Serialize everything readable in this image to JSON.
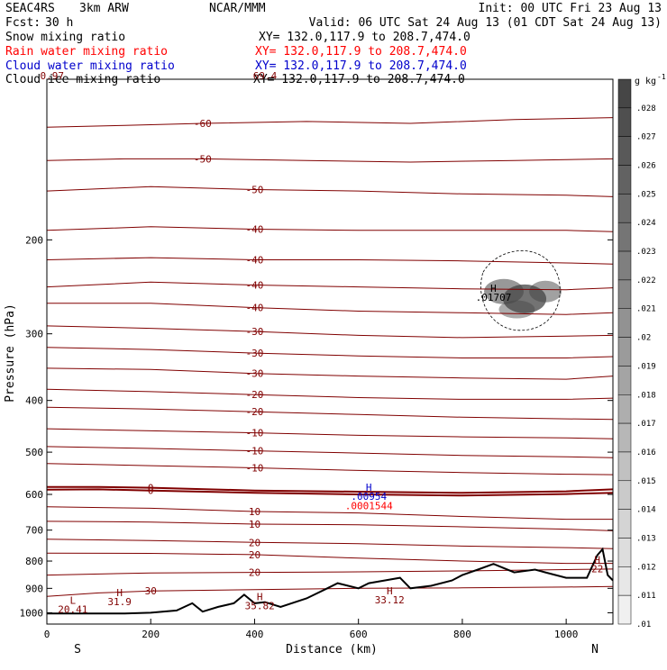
{
  "header": {
    "model": "SEAC4RS",
    "resolution": "3km ARW",
    "center": "NCAR/MMM",
    "init": "Init: 00 UTC Fri 23 Aug 13",
    "fcst_label": "Fcst:",
    "fcst_value": "30 h",
    "valid": "Valid: 06 UTC Sat 24 Aug 13 (01 CDT Sat 24 Aug 13)"
  },
  "fields": [
    {
      "name": "Snow mixing ratio",
      "xy": "XY= 132.0,117.9 to 208.7,474.0",
      "color": "#000000"
    },
    {
      "name": "Rain water mixing ratio",
      "xy": "XY= 132.0,117.9 to 208.7,474.0",
      "color": "#ff0000"
    },
    {
      "name": "Cloud water mixing ratio",
      "xy": "XY= 132.0,117.9 to 208.7,474.0",
      "color": "#0000cc"
    },
    {
      "name": "Cloud ice mixing ratio",
      "xy": "XY= 132.0,117.9 to 208.7,474.0",
      "color": "#000000"
    }
  ],
  "colors": {
    "contour": "#800000",
    "zero_contour": "#800000",
    "terrain": "#000000",
    "cloud_water": "#0000cc",
    "rain_water": "#ff0000",
    "snow_shading": "#444444"
  },
  "chart_data": {
    "type": "cross-section",
    "xlabel": "Distance (km)",
    "ylabel": "Pressure (hPa)",
    "xlim": [
      0,
      1090
    ],
    "ylim": [
      1050,
      100
    ],
    "y_scale": "log",
    "x_ticks": [
      0,
      200,
      400,
      600,
      800,
      1000
    ],
    "y_ticks": [
      200,
      300,
      400,
      500,
      600,
      700,
      800,
      900,
      1000
    ],
    "endpoint_labels": {
      "left": "S",
      "right": "N"
    },
    "colorbar": {
      "unit": "g kg",
      "unit_superscript": "-1",
      "levels": [
        ".028",
        ".027",
        ".026",
        ".025",
        ".024",
        ".023",
        ".022",
        ".021",
        ".02",
        ".019",
        ".018",
        ".017",
        ".016",
        ".015",
        ".014",
        ".013",
        ".012",
        ".011",
        ".01"
      ]
    },
    "isotherms": [
      {
        "label": "-60",
        "points": [
          [
            0,
            123
          ],
          [
            150,
            122
          ],
          [
            300,
            121
          ],
          [
            500,
            120
          ],
          [
            700,
            121
          ],
          [
            900,
            119
          ],
          [
            1090,
            118
          ]
        ]
      },
      {
        "label": "-50",
        "points": [
          [
            0,
            142
          ],
          [
            150,
            141
          ],
          [
            300,
            141
          ],
          [
            500,
            142
          ],
          [
            700,
            143
          ],
          [
            900,
            142
          ],
          [
            1090,
            141
          ]
        ]
      },
      {
        "label": "-50",
        "points": [
          [
            0,
            162
          ],
          [
            200,
            159
          ],
          [
            400,
            161
          ],
          [
            600,
            162
          ],
          [
            800,
            164
          ],
          [
            1000,
            165
          ],
          [
            1090,
            166
          ]
        ]
      },
      {
        "label": "-40",
        "points": [
          [
            0,
            192
          ],
          [
            200,
            189
          ],
          [
            400,
            191
          ],
          [
            600,
            192
          ],
          [
            800,
            192
          ],
          [
            1000,
            192
          ],
          [
            1090,
            193
          ]
        ]
      },
      {
        "label": "-40",
        "points": [
          [
            0,
            218
          ],
          [
            200,
            216
          ],
          [
            400,
            218
          ],
          [
            600,
            218
          ],
          [
            800,
            219
          ],
          [
            1000,
            221
          ],
          [
            1090,
            222
          ]
        ]
      },
      {
        "label": "-40",
        "points": [
          [
            0,
            245
          ],
          [
            200,
            240
          ],
          [
            400,
            243
          ],
          [
            600,
            245
          ],
          [
            800,
            247
          ],
          [
            1000,
            248
          ],
          [
            1090,
            246
          ]
        ]
      },
      {
        "label": "-40",
        "points": [
          [
            0,
            263
          ],
          [
            200,
            263
          ],
          [
            400,
            268
          ],
          [
            600,
            272
          ],
          [
            800,
            274
          ],
          [
            1000,
            276
          ],
          [
            1090,
            274
          ]
        ]
      },
      {
        "label": "-30",
        "points": [
          [
            0,
            290
          ],
          [
            200,
            293
          ],
          [
            400,
            297
          ],
          [
            600,
            302
          ],
          [
            800,
            305
          ],
          [
            1000,
            303
          ],
          [
            1090,
            302
          ]
        ]
      },
      {
        "label": "-30",
        "points": [
          [
            0,
            318
          ],
          [
            200,
            321
          ],
          [
            400,
            326
          ],
          [
            600,
            330
          ],
          [
            800,
            333
          ],
          [
            1000,
            333
          ],
          [
            1090,
            331
          ]
        ]
      },
      {
        "label": "-30",
        "points": [
          [
            0,
            348
          ],
          [
            200,
            350
          ],
          [
            400,
            356
          ],
          [
            600,
            360
          ],
          [
            800,
            363
          ],
          [
            1000,
            365
          ],
          [
            1090,
            360
          ]
        ]
      },
      {
        "label": "-20",
        "points": [
          [
            0,
            381
          ],
          [
            200,
            385
          ],
          [
            400,
            390
          ],
          [
            600,
            395
          ],
          [
            800,
            398
          ],
          [
            1000,
            398
          ],
          [
            1090,
            396
          ]
        ]
      },
      {
        "label": "-20",
        "points": [
          [
            0,
            412
          ],
          [
            200,
            415
          ],
          [
            400,
            420
          ],
          [
            600,
            425
          ],
          [
            800,
            430
          ],
          [
            1000,
            433
          ],
          [
            1090,
            434
          ]
        ]
      },
      {
        "label": "-10",
        "points": [
          [
            0,
            452
          ],
          [
            200,
            456
          ],
          [
            400,
            460
          ],
          [
            600,
            465
          ],
          [
            800,
            468
          ],
          [
            1000,
            470
          ],
          [
            1090,
            472
          ]
        ]
      },
      {
        "label": "-10",
        "points": [
          [
            0,
            488
          ],
          [
            200,
            492
          ],
          [
            400,
            497
          ],
          [
            600,
            502
          ],
          [
            800,
            507
          ],
          [
            1000,
            510
          ],
          [
            1090,
            512
          ]
        ]
      },
      {
        "label": "-10",
        "points": [
          [
            0,
            525
          ],
          [
            200,
            530
          ],
          [
            400,
            535
          ],
          [
            600,
            541
          ],
          [
            800,
            546
          ],
          [
            1000,
            550
          ],
          [
            1090,
            551
          ]
        ]
      },
      {
        "label": "0",
        "points": [
          [
            0,
            581
          ],
          [
            100,
            581
          ],
          [
            200,
            583
          ],
          [
            400,
            590
          ],
          [
            600,
            593
          ],
          [
            800,
            596
          ],
          [
            1000,
            592
          ],
          [
            1090,
            587
          ]
        ]
      },
      {
        "label": "0",
        "points": [
          [
            0,
            588
          ],
          [
            100,
            587
          ],
          [
            200,
            590
          ],
          [
            400,
            596
          ],
          [
            600,
            600
          ],
          [
            800,
            603
          ],
          [
            1000,
            599
          ],
          [
            1090,
            596
          ]
        ]
      },
      {
        "label": "10",
        "points": [
          [
            0,
            633
          ],
          [
            200,
            637
          ],
          [
            400,
            646
          ],
          [
            600,
            650
          ],
          [
            800,
            660
          ],
          [
            1000,
            668
          ],
          [
            1090,
            668
          ]
        ]
      },
      {
        "label": "10",
        "points": [
          [
            0,
            674
          ],
          [
            200,
            676
          ],
          [
            400,
            682
          ],
          [
            600,
            684
          ],
          [
            800,
            690
          ],
          [
            1000,
            697
          ],
          [
            1090,
            702
          ]
        ]
      },
      {
        "label": "20",
        "points": [
          [
            0,
            728
          ],
          [
            200,
            732
          ],
          [
            400,
            738
          ],
          [
            600,
            742
          ],
          [
            800,
            750
          ],
          [
            1000,
            755
          ],
          [
            1090,
            758
          ]
        ]
      },
      {
        "label": "20",
        "points": [
          [
            0,
            773
          ],
          [
            200,
            774
          ],
          [
            400,
            778
          ],
          [
            600,
            790
          ],
          [
            800,
            800
          ],
          [
            1000,
            808
          ],
          [
            1090,
            808
          ]
        ]
      },
      {
        "label": "20",
        "points": [
          [
            0,
            850
          ],
          [
            200,
            842
          ],
          [
            400,
            840
          ],
          [
            600,
            838
          ],
          [
            800,
            835
          ],
          [
            1000,
            830
          ],
          [
            1090,
            828
          ]
        ]
      },
      {
        "label": "30",
        "points": [
          [
            0,
            932
          ],
          [
            100,
            918
          ],
          [
            200,
            910
          ],
          [
            400,
            905
          ],
          [
            600,
            900
          ],
          [
            800,
            898
          ],
          [
            1000,
            895
          ],
          [
            1090,
            893
          ]
        ]
      }
    ],
    "terrain": [
      [
        0,
        1003
      ],
      [
        150,
        1003
      ],
      [
        200,
        1000
      ],
      [
        250,
        990
      ],
      [
        280,
        960
      ],
      [
        300,
        995
      ],
      [
        330,
        975
      ],
      [
        360,
        960
      ],
      [
        380,
        925
      ],
      [
        400,
        960
      ],
      [
        420,
        955
      ],
      [
        450,
        975
      ],
      [
        500,
        940
      ],
      [
        540,
        900
      ],
      [
        560,
        880
      ],
      [
        600,
        900
      ],
      [
        620,
        880
      ],
      [
        650,
        870
      ],
      [
        680,
        860
      ],
      [
        700,
        900
      ],
      [
        740,
        890
      ],
      [
        780,
        870
      ],
      [
        800,
        850
      ],
      [
        830,
        830
      ],
      [
        860,
        810
      ],
      [
        900,
        840
      ],
      [
        940,
        830
      ],
      [
        960,
        840
      ],
      [
        1000,
        860
      ],
      [
        1040,
        860
      ],
      [
        1060,
        780
      ],
      [
        1070,
        760
      ],
      [
        1080,
        850
      ],
      [
        1090,
        870
      ]
    ],
    "extrema_labels": [
      {
        "marker": "H",
        "value": ".01707",
        "x": 860,
        "p": 260,
        "color": "#000000"
      },
      {
        "marker": "H",
        "value": ".00954",
        "x": 620,
        "p": 614,
        "color": "#0000cc"
      },
      {
        "marker": "",
        "value": ".0001544",
        "x": 620,
        "p": 640,
        "color": "#ff0000"
      },
      {
        "marker": "H",
        "value": "33.12",
        "x": 660,
        "p": 960,
        "color": "#800000"
      },
      {
        "marker": "H",
        "value": "35.82",
        "x": 410,
        "p": 985,
        "color": "#800000"
      },
      {
        "marker": "H",
        "value": "31.9",
        "x": 140,
        "p": 968,
        "color": "#800000"
      },
      {
        "marker": "L",
        "value": "20.41",
        "x": 50,
        "p": 1000,
        "color": "#800000"
      },
      {
        "marker": "H",
        "value": "22",
        "x": 1060,
        "p": 840,
        "color": "#800000"
      },
      {
        "marker": "",
        "value": "0.97",
        "x": 10,
        "p": 100,
        "color": "#800000"
      },
      {
        "marker": "",
        "value": "69.4",
        "x": 420,
        "p": 100,
        "color": "#800000"
      }
    ]
  }
}
